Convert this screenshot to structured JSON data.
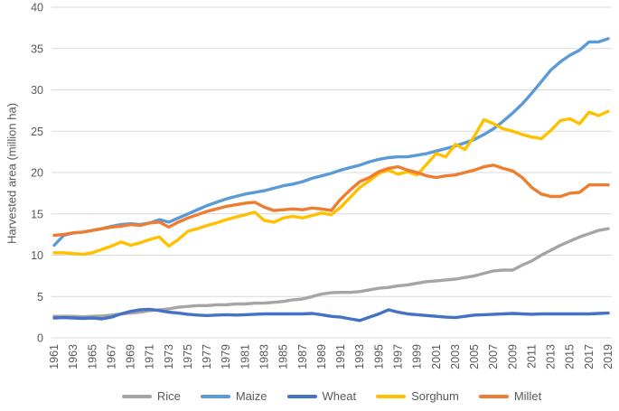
{
  "colors": {
    "background": "#FFFFFF",
    "text": "#595959",
    "gridline": "#D9D9D9"
  },
  "chart_data": {
    "type": "line",
    "title": "",
    "xlabel": "",
    "ylabel": "Harvested area (million ha)",
    "ylim": [
      0,
      40
    ],
    "yticks": [
      0,
      5,
      10,
      15,
      20,
      25,
      30,
      35,
      40
    ],
    "grid": "horizontal",
    "legend_position": "bottom",
    "x": [
      1961,
      1962,
      1963,
      1964,
      1965,
      1966,
      1967,
      1968,
      1969,
      1970,
      1971,
      1972,
      1973,
      1974,
      1975,
      1976,
      1977,
      1978,
      1979,
      1980,
      1981,
      1982,
      1983,
      1984,
      1985,
      1986,
      1987,
      1988,
      1989,
      1990,
      1991,
      1992,
      1993,
      1994,
      1995,
      1996,
      1997,
      1998,
      1999,
      2000,
      2001,
      2002,
      2003,
      2004,
      2005,
      2006,
      2007,
      2008,
      2009,
      2010,
      2011,
      2012,
      2013,
      2014,
      2015,
      2016,
      2017,
      2018,
      2019
    ],
    "xtick_labels": [
      "1961",
      "1963",
      "1965",
      "1967",
      "1969",
      "1971",
      "1973",
      "1975",
      "1977",
      "1979",
      "1981",
      "1983",
      "1985",
      "1987",
      "1989",
      "1991",
      "1993",
      "1995",
      "1997",
      "1999",
      "2001",
      "2003",
      "2005",
      "2007",
      "2009",
      "2011",
      "2013",
      "2015",
      "2017",
      "2019"
    ],
    "series": [
      {
        "name": "Rice",
        "color": "#A5A5A5",
        "values": [
          2.6,
          2.6,
          2.6,
          2.55,
          2.6,
          2.65,
          2.75,
          2.9,
          3.0,
          3.1,
          3.3,
          3.4,
          3.5,
          3.7,
          3.8,
          3.9,
          3.9,
          4.0,
          4.0,
          4.1,
          4.1,
          4.2,
          4.2,
          4.3,
          4.4,
          4.6,
          4.7,
          5.0,
          5.3,
          5.45,
          5.5,
          5.5,
          5.6,
          5.8,
          6.0,
          6.1,
          6.3,
          6.4,
          6.6,
          6.8,
          6.9,
          7.0,
          7.1,
          7.3,
          7.5,
          7.8,
          8.1,
          8.2,
          8.2,
          8.8,
          9.3,
          10.0,
          10.6,
          11.2,
          11.7,
          12.2,
          12.6,
          13.0,
          13.2
        ]
      },
      {
        "name": "Maize",
        "color": "#5B9BD5",
        "values": [
          11.2,
          12.4,
          12.7,
          12.8,
          13.0,
          13.2,
          13.5,
          13.7,
          13.8,
          13.7,
          13.9,
          14.3,
          14.0,
          14.5,
          15.0,
          15.5,
          16.0,
          16.4,
          16.8,
          17.1,
          17.4,
          17.6,
          17.8,
          18.1,
          18.4,
          18.6,
          18.9,
          19.3,
          19.6,
          19.9,
          20.3,
          20.6,
          20.9,
          21.3,
          21.6,
          21.8,
          21.9,
          21.9,
          22.1,
          22.3,
          22.6,
          22.9,
          23.2,
          23.6,
          24.0,
          24.6,
          25.3,
          26.2,
          27.2,
          28.3,
          29.6,
          31.0,
          32.4,
          33.4,
          34.2,
          34.8,
          35.8,
          35.8,
          36.2
        ]
      },
      {
        "name": "Wheat",
        "color": "#4472C4",
        "values": [
          2.4,
          2.45,
          2.4,
          2.35,
          2.4,
          2.3,
          2.5,
          2.9,
          3.2,
          3.4,
          3.45,
          3.3,
          3.1,
          3.0,
          2.85,
          2.75,
          2.7,
          2.75,
          2.8,
          2.75,
          2.8,
          2.85,
          2.9,
          2.9,
          2.9,
          2.9,
          2.9,
          2.95,
          2.8,
          2.6,
          2.5,
          2.3,
          2.1,
          2.5,
          2.9,
          3.4,
          3.1,
          2.9,
          2.8,
          2.7,
          2.6,
          2.5,
          2.45,
          2.6,
          2.75,
          2.8,
          2.85,
          2.9,
          2.95,
          2.9,
          2.85,
          2.9,
          2.9,
          2.9,
          2.9,
          2.9,
          2.9,
          2.95,
          3.0
        ]
      },
      {
        "name": "Sorghum",
        "color": "#FFC000",
        "values": [
          10.3,
          10.3,
          10.2,
          10.1,
          10.3,
          10.7,
          11.1,
          11.6,
          11.2,
          11.5,
          11.9,
          12.2,
          11.1,
          11.9,
          12.9,
          13.2,
          13.6,
          13.9,
          14.3,
          14.6,
          14.9,
          15.2,
          14.2,
          14.0,
          14.5,
          14.7,
          14.5,
          14.8,
          15.1,
          14.9,
          15.8,
          17.0,
          18.2,
          19.0,
          19.9,
          20.3,
          19.8,
          20.1,
          19.7,
          21.0,
          22.3,
          21.9,
          23.4,
          22.8,
          24.4,
          26.4,
          25.9,
          25.3,
          25.0,
          24.6,
          24.3,
          24.1,
          25.1,
          26.3,
          26.5,
          25.9,
          27.3,
          26.9,
          27.4
        ]
      },
      {
        "name": "Millet",
        "color": "#ED7D31",
        "values": [
          12.4,
          12.5,
          12.7,
          12.8,
          13.0,
          13.2,
          13.4,
          13.5,
          13.7,
          13.6,
          13.9,
          14.0,
          13.4,
          14.0,
          14.5,
          14.9,
          15.3,
          15.6,
          15.9,
          16.1,
          16.3,
          16.4,
          15.8,
          15.4,
          15.5,
          15.6,
          15.5,
          15.7,
          15.6,
          15.4,
          16.8,
          17.9,
          18.9,
          19.4,
          20.1,
          20.5,
          20.7,
          20.3,
          20.0,
          19.6,
          19.4,
          19.6,
          19.7,
          20.0,
          20.3,
          20.7,
          20.9,
          20.5,
          20.2,
          19.4,
          18.2,
          17.4,
          17.1,
          17.1,
          17.5,
          17.6,
          18.5,
          18.5,
          18.5
        ]
      }
    ]
  }
}
